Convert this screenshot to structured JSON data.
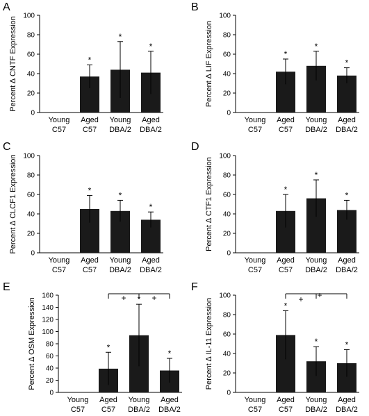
{
  "chart_data": [
    {
      "panel": "A",
      "type": "bar",
      "categories": [
        [
          "Young",
          "C57"
        ],
        [
          "Aged",
          "C57"
        ],
        [
          "Young",
          "DBA/2"
        ],
        [
          "Aged",
          "DBA/2"
        ]
      ],
      "values": [
        0,
        37,
        44,
        41
      ],
      "errors": [
        0,
        12,
        29,
        22
      ],
      "significance": [
        "",
        "*",
        "*",
        "*"
      ],
      "ylabel": "Percent ∆ CNTF Expression",
      "ylim": [
        0,
        100
      ],
      "yticks": [
        0,
        20,
        40,
        60,
        80,
        100
      ],
      "brackets": []
    },
    {
      "panel": "B",
      "type": "bar",
      "categories": [
        [
          "Young",
          "C57"
        ],
        [
          "Aged",
          "C57"
        ],
        [
          "Young",
          "DBA/2"
        ],
        [
          "Aged",
          "DBA/2"
        ]
      ],
      "values": [
        0,
        42,
        48,
        38
      ],
      "errors": [
        0,
        13,
        15,
        8
      ],
      "significance": [
        "",
        "*",
        "*",
        "*"
      ],
      "ylabel": "Percent ∆ LIF Expression",
      "ylim": [
        0,
        100
      ],
      "yticks": [
        0,
        20,
        40,
        60,
        80,
        100
      ],
      "brackets": []
    },
    {
      "panel": "C",
      "type": "bar",
      "categories": [
        [
          "Young",
          "C57"
        ],
        [
          "Aged",
          "C57"
        ],
        [
          "Young",
          "DBA/2"
        ],
        [
          "Aged",
          "DBA/2"
        ]
      ],
      "values": [
        0,
        45,
        43,
        34
      ],
      "errors": [
        0,
        14,
        11,
        8
      ],
      "significance": [
        "",
        "*",
        "*",
        "*"
      ],
      "ylabel": "Percent ∆ CLCF1 Expression",
      "ylim": [
        0,
        100
      ],
      "yticks": [
        0,
        20,
        40,
        60,
        80,
        100
      ],
      "brackets": []
    },
    {
      "panel": "D",
      "type": "bar",
      "categories": [
        [
          "Young",
          "C57"
        ],
        [
          "Aged",
          "C57"
        ],
        [
          "Young",
          "DBA/2"
        ],
        [
          "Aged",
          "DBA/2"
        ]
      ],
      "values": [
        0,
        43,
        56,
        44
      ],
      "errors": [
        0,
        17,
        19,
        10
      ],
      "significance": [
        "",
        "*",
        "*",
        "*"
      ],
      "ylabel": "Percent  ∆ CTF1 Expression",
      "ylim": [
        0,
        100
      ],
      "yticks": [
        0,
        20,
        40,
        60,
        80,
        100
      ],
      "brackets": []
    },
    {
      "panel": "E",
      "type": "bar",
      "categories": [
        [
          "Young",
          "C57"
        ],
        [
          "Aged",
          "C57"
        ],
        [
          "Young",
          "DBA/2"
        ],
        [
          "Aged",
          "DBA/2"
        ]
      ],
      "values": [
        0,
        39,
        94,
        36
      ],
      "errors": [
        0,
        27,
        51,
        20
      ],
      "significance": [
        "",
        "*",
        "*",
        "*"
      ],
      "ylabel": "Percent ∆ OSM Expression",
      "ylim": [
        0,
        160
      ],
      "yticks": [
        0,
        20,
        40,
        60,
        80,
        100,
        120,
        140,
        160
      ],
      "brackets": [
        {
          "from": 1,
          "to": 2,
          "symbol": "+"
        },
        {
          "from": 2,
          "to": 3,
          "symbol": "+"
        }
      ]
    },
    {
      "panel": "F",
      "type": "bar",
      "categories": [
        [
          "Young",
          "C57"
        ],
        [
          "Aged",
          "C57"
        ],
        [
          "Young",
          "DBA/2"
        ],
        [
          "Aged",
          "DBA/2"
        ]
      ],
      "values": [
        0,
        59,
        32,
        30
      ],
      "errors": [
        0,
        25,
        15,
        14
      ],
      "significance": [
        "",
        "*",
        "*",
        "*"
      ],
      "ylabel": "Percent  ∆ IL-11 Expression",
      "ylim": [
        0,
        100
      ],
      "yticks": [
        0,
        20,
        40,
        60,
        80,
        100
      ],
      "brackets": [
        {
          "from": 1,
          "to": 2,
          "symbol": "+"
        },
        {
          "from": 1,
          "to": 3,
          "symbol": "+"
        }
      ]
    }
  ]
}
